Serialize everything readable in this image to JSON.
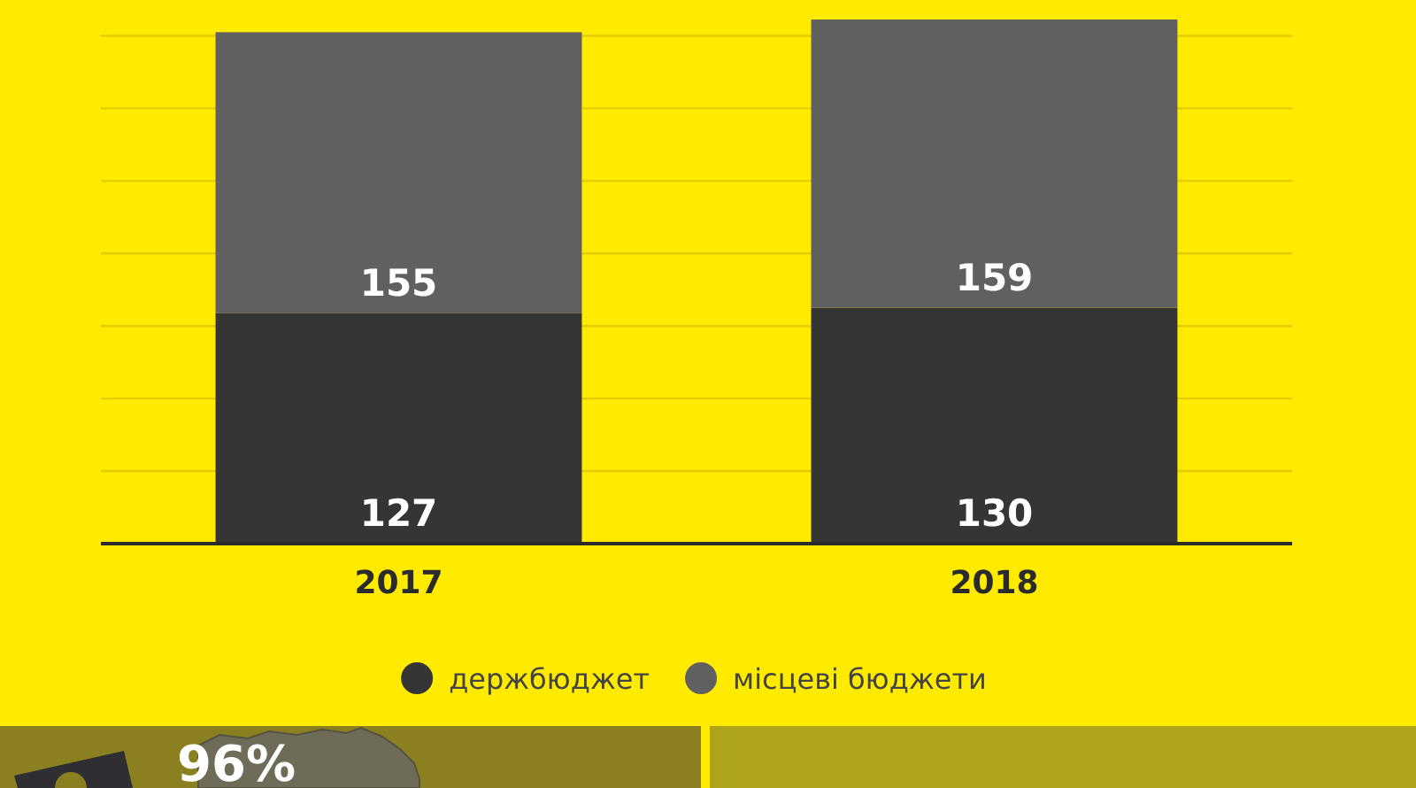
{
  "chart_data": {
    "type": "bar",
    "stacked": true,
    "categories": [
      "2017",
      "2018"
    ],
    "series": [
      {
        "name": "держбюджет",
        "color": "#353535",
        "values": [
          127,
          130
        ]
      },
      {
        "name": "місцеві бюджети",
        "color": "#606060",
        "values": [
          155,
          159
        ]
      }
    ],
    "ylim": [
      0,
      290
    ],
    "yticks": [
      {
        "value": 40,
        "label": null
      },
      {
        "value": 80,
        "label": null
      },
      {
        "value": 120,
        "label": null
      },
      {
        "value": 160,
        "label": null
      },
      {
        "value": 200,
        "label": null
      },
      {
        "value": 240,
        "label": null
      },
      {
        "value": 280,
        "label": null
      }
    ],
    "tick_labels": "x",
    "grid": "y",
    "data_labels": true,
    "legend": "bottom",
    "annotations": [
      "96%"
    ]
  }
}
